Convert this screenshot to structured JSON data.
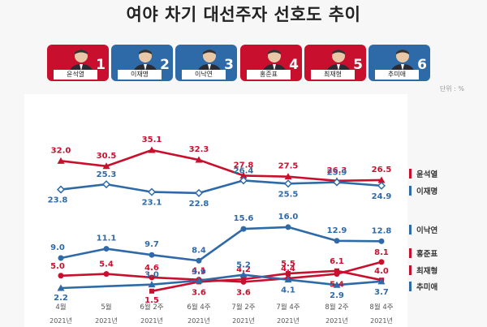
{
  "title": "여야 차기 대선주자 선호도 추이",
  "unit": "단위 : %",
  "colors": {
    "red": "#c8102e",
    "blue": "#2f6aa8"
  },
  "candidates": [
    {
      "name": "윤석열",
      "rank": "1",
      "color": "#c8102e"
    },
    {
      "name": "이재명",
      "rank": "2",
      "color": "#2f6aa8"
    },
    {
      "name": "이낙연",
      "rank": "3",
      "color": "#2f6aa8"
    },
    {
      "name": "홍준표",
      "rank": "4",
      "color": "#c8102e"
    },
    {
      "name": "최재형",
      "rank": "5",
      "color": "#c8102e"
    },
    {
      "name": "추미애",
      "rank": "6",
      "color": "#2f6aa8"
    }
  ],
  "chart_data": {
    "type": "line",
    "categories": [
      "4월",
      "5월",
      "6월 2주",
      "6월 4주",
      "7월 2주",
      "7월 4주",
      "8월 2주",
      "8월 4주"
    ],
    "category_years": [
      "2021년",
      "2021년",
      "2021년",
      "2021년",
      "2021년",
      "2021년",
      "2021년",
      "2021년"
    ],
    "series": [
      {
        "name": "윤석열",
        "color": "#c8102e",
        "marker": "triangle",
        "values": [
          32.0,
          30.5,
          35.1,
          32.3,
          27.8,
          27.5,
          26.3,
          26.5
        ],
        "labels": [
          "32.0",
          "30.5",
          "35.1",
          "32.3",
          "27.8",
          "27.5",
          "26.3",
          "26.5"
        ]
      },
      {
        "name": "이재명",
        "color": "#2f6aa8",
        "marker": "diamond",
        "values": [
          23.8,
          25.3,
          23.1,
          22.8,
          26.4,
          25.5,
          25.9,
          24.9
        ],
        "labels": [
          "23.8",
          "25.3",
          "23.1",
          "22.8",
          "26.4",
          "25.5",
          "25.9",
          "24.9"
        ]
      },
      {
        "name": "이낙연",
        "color": "#2f6aa8",
        "marker": "circle",
        "values": [
          9.0,
          11.1,
          9.7,
          8.4,
          15.6,
          16.0,
          12.9,
          12.8
        ],
        "labels": [
          "9.0",
          "11.1",
          "9.7",
          "8.4",
          "15.6",
          "16.0",
          "12.9",
          "12.8"
        ]
      },
      {
        "name": "홍준표",
        "color": "#c8102e",
        "marker": "circle",
        "values": [
          5.0,
          5.4,
          4.6,
          4.1,
          3.6,
          4.4,
          5.4,
          8.1
        ],
        "labels": [
          "5.0",
          "5.4",
          "4.6",
          "4.1",
          "3.6",
          "4.4",
          "5.4",
          "8.1"
        ]
      },
      {
        "name": "최재형",
        "color": "#c8102e",
        "marker": "square",
        "values": [
          null,
          null,
          1.5,
          3.6,
          4.2,
          5.5,
          6.1,
          4.0
        ],
        "labels": [
          "",
          "",
          "1.5",
          "3.6",
          "4.2",
          "5.5",
          "6.1",
          "4.0"
        ]
      },
      {
        "name": "추미애",
        "color": "#2f6aa8",
        "marker": "triangle",
        "values": [
          2.2,
          null,
          3.0,
          3.9,
          5.2,
          4.1,
          2.9,
          3.7
        ],
        "labels": [
          "2.2",
          "",
          "3.0",
          "3.9",
          "5.2",
          "4.1",
          "2.9",
          "3.7"
        ]
      }
    ]
  }
}
